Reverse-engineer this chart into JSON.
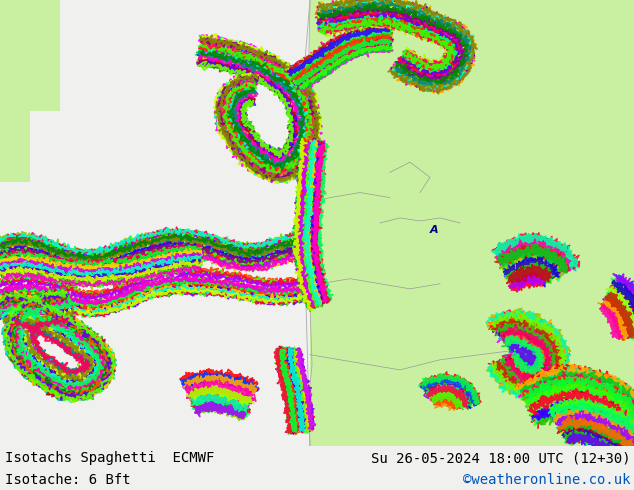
{
  "title_left": "Isotachs Spaghetti  ECMWF",
  "title_right": "Su 26-05-2024 18:00 UTC (12+30)",
  "subtitle_left": "Isotache: 6 Bft",
  "subtitle_right": "©weatheronline.co.uk",
  "land_color": "#c8f0a0",
  "ocean_color": "#f0f0ee",
  "gray_land": "#c8c8c8",
  "text_color_black": "#000000",
  "text_color_blue": "#0055bb",
  "bottom_bar_color": "#cccccc",
  "figsize": [
    6.34,
    4.9
  ],
  "dpi": 100,
  "line_colors": [
    "#ff0000",
    "#00bb00",
    "#0000ff",
    "#ff00ff",
    "#00cccc",
    "#ff8800",
    "#8800cc",
    "#00ff88",
    "#ff0088",
    "#88cc00",
    "#ff4400",
    "#0044ff",
    "#44ff00",
    "#ff0044",
    "#00ff44",
    "#ffaa00",
    "#aa00ff",
    "#00ffaa",
    "#ff00aa",
    "#aaff00",
    "#cc2200",
    "#2200cc",
    "#22cc00",
    "#cc0022",
    "#00cc22",
    "#ff6600",
    "#6600ff",
    "#00ff66",
    "#ff0066",
    "#66ff00",
    "#ff3300",
    "#3300ff",
    "#33ff00",
    "#ff0033",
    "#00ff33",
    "#ffcc00",
    "#cc00ff",
    "#00ffcc",
    "#ff00cc",
    "#ccff00",
    "#888800",
    "#008888",
    "#880088",
    "#888800",
    "#008800",
    "#ff5500",
    "#5500ff",
    "#00ff55",
    "#ff0055",
    "#55ff00"
  ]
}
